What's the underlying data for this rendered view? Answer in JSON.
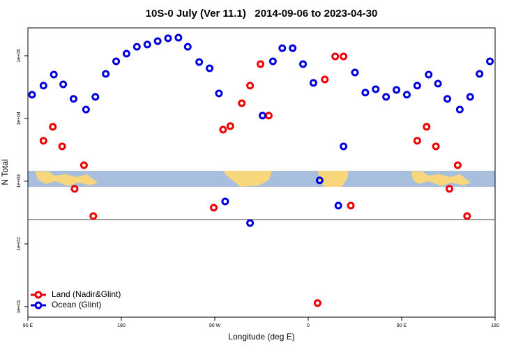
{
  "chart_data": {
    "type": "scatter",
    "title": "10S-0 July (Ver 11.1)   2014-09-06 to 2023-04-30",
    "x_label": "Longitude (deg E)",
    "y_label": "N Total",
    "log_y": true,
    "legend": "bottomleft",
    "xlim": [
      90,
      540
    ],
    "xticks": [
      {
        "value": 90,
        "label": "90 E"
      },
      {
        "value": 180,
        "label": "180"
      },
      {
        "value": 270,
        "label": "90 W"
      },
      {
        "value": 360,
        "label": "0"
      },
      {
        "value": 450,
        "label": "90 E"
      },
      {
        "value": 540,
        "label": "180"
      }
    ],
    "ylim": [
      6.8,
      278000
    ],
    "yticks": [
      {
        "value": 10,
        "label": "1e+01"
      },
      {
        "value": 100,
        "label": "1e+02"
      },
      {
        "value": 1000,
        "label": "1e+03"
      },
      {
        "value": 10000,
        "label": "1e+04"
      },
      {
        "value": 100000,
        "label": "1e+05"
      }
    ],
    "reference_line": 245,
    "series": [
      {
        "name": "Land (Nadir&Glint)",
        "color": "#ee0000",
        "x": [
          105,
          114,
          123,
          135,
          144,
          153,
          269,
          278,
          285,
          296,
          304,
          314,
          322,
          369,
          376,
          386,
          394,
          401,
          465,
          474,
          483,
          496,
          504,
          513
        ],
        "values": [
          4410,
          7360,
          3590,
          755,
          1800,
          278,
          378,
          6640,
          7550,
          17500,
          33300,
          73600,
          11100,
          11.4,
          41900,
          97500,
          97500,
          408,
          4410,
          7360,
          3590,
          755,
          1800,
          278
        ]
      },
      {
        "name": "Ocean (Glint)",
        "color": "#0000dd",
        "x": [
          94,
          105,
          115,
          124,
          134,
          146,
          155,
          165,
          175,
          185,
          195,
          205,
          215,
          225,
          235,
          244,
          255,
          265,
          274,
          280,
          304,
          316,
          326,
          335,
          345,
          355,
          365,
          371,
          389,
          394,
          405,
          415,
          425,
          435,
          445,
          455,
          465,
          476,
          485,
          494,
          506,
          516,
          525,
          535
        ],
        "values": [
          23900,
          33300,
          50100,
          35000,
          20500,
          13900,
          22100,
          51400,
          81500,
          108000,
          139000,
          151000,
          171000,
          190000,
          194000,
          139000,
          79400,
          63100,
          25100,
          476,
          215,
          11100,
          81500,
          132000,
          132000,
          73600,
          36900,
          1030,
          408,
          3590,
          54100,
          25800,
          29300,
          22100,
          28500,
          23900,
          33300,
          50100,
          35900,
          20500,
          13900,
          22100,
          51400,
          81500
        ]
      }
    ]
  }
}
